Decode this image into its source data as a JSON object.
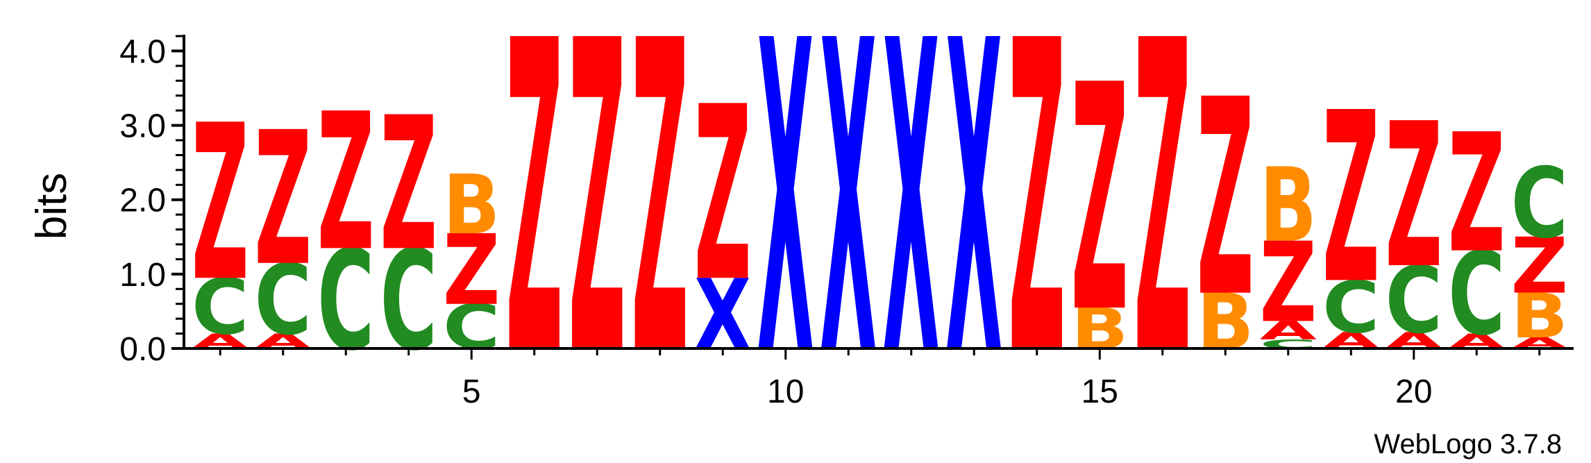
{
  "chart_data": {
    "type": "sequence-logo",
    "ylabel": "bits",
    "ylim": [
      0,
      4.2
    ],
    "y_ticks": [
      "0.0",
      "1.0",
      "2.0",
      "3.0",
      "4.0"
    ],
    "x_tick_labels": [
      "5",
      "10",
      "15",
      "20"
    ],
    "x_range": [
      1,
      22
    ],
    "footer": "WebLogo 3.7.8",
    "colors": {
      "Z": "#ff0000",
      "X": "#0000ff",
      "B": "#ff8c00",
      "C": "#228b22",
      "A": "#ff0000"
    },
    "positions": [
      {
        "pos": 1,
        "stack": [
          {
            "letter": "A",
            "bits": 0.2
          },
          {
            "letter": "C",
            "bits": 0.75
          },
          {
            "letter": "Z",
            "bits": 2.1
          }
        ]
      },
      {
        "pos": 2,
        "stack": [
          {
            "letter": "A",
            "bits": 0.2
          },
          {
            "letter": "C",
            "bits": 0.95
          },
          {
            "letter": "Z",
            "bits": 1.8
          }
        ]
      },
      {
        "pos": 3,
        "stack": [
          {
            "letter": "C",
            "bits": 1.35
          },
          {
            "letter": "Z",
            "bits": 1.85
          }
        ]
      },
      {
        "pos": 4,
        "stack": [
          {
            "letter": "C",
            "bits": 1.35
          },
          {
            "letter": "Z",
            "bits": 1.8
          }
        ]
      },
      {
        "pos": 5,
        "stack": [
          {
            "letter": "C",
            "bits": 0.6
          },
          {
            "letter": "Z",
            "bits": 0.95
          },
          {
            "letter": "B",
            "bits": 0.8
          }
        ]
      },
      {
        "pos": 6,
        "stack": [
          {
            "letter": "Z",
            "bits": 4.2
          }
        ]
      },
      {
        "pos": 7,
        "stack": [
          {
            "letter": "Z",
            "bits": 4.2
          }
        ]
      },
      {
        "pos": 8,
        "stack": [
          {
            "letter": "Z",
            "bits": 4.2
          }
        ]
      },
      {
        "pos": 9,
        "stack": [
          {
            "letter": "X",
            "bits": 0.95
          },
          {
            "letter": "Z",
            "bits": 2.35
          }
        ]
      },
      {
        "pos": 10,
        "stack": [
          {
            "letter": "X",
            "bits": 4.2
          }
        ]
      },
      {
        "pos": 11,
        "stack": [
          {
            "letter": "X",
            "bits": 4.2
          }
        ]
      },
      {
        "pos": 12,
        "stack": [
          {
            "letter": "X",
            "bits": 4.2
          }
        ]
      },
      {
        "pos": 13,
        "stack": [
          {
            "letter": "X",
            "bits": 4.2
          }
        ]
      },
      {
        "pos": 14,
        "stack": [
          {
            "letter": "Z",
            "bits": 4.2
          }
        ]
      },
      {
        "pos": 15,
        "stack": [
          {
            "letter": "B",
            "bits": 0.55
          },
          {
            "letter": "Z",
            "bits": 3.05
          }
        ]
      },
      {
        "pos": 16,
        "stack": [
          {
            "letter": "Z",
            "bits": 4.2
          }
        ]
      },
      {
        "pos": 17,
        "stack": [
          {
            "letter": "B",
            "bits": 0.75
          },
          {
            "letter": "Z",
            "bits": 2.65
          }
        ]
      },
      {
        "pos": 18,
        "stack": [
          {
            "letter": "C",
            "bits": 0.12
          },
          {
            "letter": "A",
            "bits": 0.25
          },
          {
            "letter": "Z",
            "bits": 1.08
          },
          {
            "letter": "B",
            "bits": 1.0
          }
        ]
      },
      {
        "pos": 19,
        "stack": [
          {
            "letter": "A",
            "bits": 0.22
          },
          {
            "letter": "C",
            "bits": 0.7
          },
          {
            "letter": "Z",
            "bits": 2.3
          }
        ]
      },
      {
        "pos": 20,
        "stack": [
          {
            "letter": "A",
            "bits": 0.22
          },
          {
            "letter": "C",
            "bits": 0.9
          },
          {
            "letter": "Z",
            "bits": 1.95
          }
        ]
      },
      {
        "pos": 21,
        "stack": [
          {
            "letter": "A",
            "bits": 0.2
          },
          {
            "letter": "C",
            "bits": 1.12
          },
          {
            "letter": "Z",
            "bits": 1.6
          }
        ]
      },
      {
        "pos": 22,
        "stack": [
          {
            "letter": "A",
            "bits": 0.15
          },
          {
            "letter": "B",
            "bits": 0.6
          },
          {
            "letter": "Z",
            "bits": 0.75
          },
          {
            "letter": "C",
            "bits": 0.95
          }
        ]
      }
    ]
  }
}
